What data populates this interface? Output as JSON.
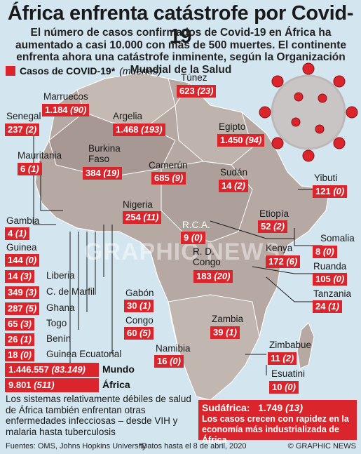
{
  "title": "África enfrenta catástrofe por Covid-19",
  "subtitle": "El número de casos confirmados de Covid-19 en África ha aumentado a casi 10.000 con más de 500 muertes. El continente enfrenta ahora una catástrofe inminente, según la Organización Mundial de la Salud",
  "legend": {
    "label": "Casos de COVID-19*",
    "sub": "(muertes)",
    "color": "#d9252b"
  },
  "countries": [
    {
      "id": "tunez",
      "name": "Túnez",
      "cases": "623",
      "deaths": "(23)"
    },
    {
      "id": "marruecos",
      "name": "Marruecos",
      "cases": "1.184",
      "deaths": "(90)"
    },
    {
      "id": "argelia",
      "name": "Argelia",
      "cases": "1.468",
      "deaths": "(193)"
    },
    {
      "id": "senegal",
      "name": "Senegal",
      "cases": "237",
      "deaths": "(2)"
    },
    {
      "id": "egipto",
      "name": "Egipto",
      "cases": "1.450",
      "deaths": "(94)"
    },
    {
      "id": "mauritania",
      "name": "Mauritania",
      "cases": "6",
      "deaths": "(1)"
    },
    {
      "id": "burkina",
      "name": "Burkina Faso",
      "cases": "384",
      "deaths": "(19)"
    },
    {
      "id": "camerun",
      "name": "Camerún",
      "cases": "685",
      "deaths": "(9)"
    },
    {
      "id": "sudan",
      "name": "Sudán",
      "cases": "14",
      "deaths": "(2)"
    },
    {
      "id": "yibuti",
      "name": "Yibuti",
      "cases": "121",
      "deaths": "(0)"
    },
    {
      "id": "nigeria",
      "name": "Nigeria",
      "cases": "254",
      "deaths": "(11)"
    },
    {
      "id": "gambia",
      "name": "Gambia",
      "cases": "4",
      "deaths": "(1)"
    },
    {
      "id": "etiopia",
      "name": "Etiopía",
      "cases": "52",
      "deaths": "(2)"
    },
    {
      "id": "rca",
      "name": "R.C.A.",
      "cases": "9",
      "deaths": "(0)"
    },
    {
      "id": "somalia",
      "name": "Somalia",
      "cases": "8",
      "deaths": "(0)"
    },
    {
      "id": "guinea",
      "name": "Guinea",
      "cases": "144",
      "deaths": "(0)"
    },
    {
      "id": "rdcongo",
      "name": "R. D. Congo",
      "cases": "183",
      "deaths": "(20)"
    },
    {
      "id": "kenya",
      "name": "Kenya",
      "cases": "172",
      "deaths": "(6)"
    },
    {
      "id": "ruanda",
      "name": "Ruanda",
      "cases": "105",
      "deaths": "(0)"
    },
    {
      "id": "liberia",
      "name": "Liberia",
      "cases": "14",
      "deaths": "(3)"
    },
    {
      "id": "cmarfil",
      "name": "C. de Marfil",
      "cases": "349",
      "deaths": "(3)"
    },
    {
      "id": "tanzania",
      "name": "Tanzania",
      "cases": "24",
      "deaths": "(1)"
    },
    {
      "id": "gabon",
      "name": "Gabón",
      "cases": "30",
      "deaths": "(1)"
    },
    {
      "id": "ghana",
      "name": "Ghana",
      "cases": "287",
      "deaths": "(5)"
    },
    {
      "id": "zambia",
      "name": "Zambia",
      "cases": "39",
      "deaths": "(1)"
    },
    {
      "id": "togo",
      "name": "Togo",
      "cases": "65",
      "deaths": "(3)"
    },
    {
      "id": "congo",
      "name": "Congo",
      "cases": "60",
      "deaths": "(5)"
    },
    {
      "id": "benin",
      "name": "Benín",
      "cases": "26",
      "deaths": "(1)"
    },
    {
      "id": "zimbabue",
      "name": "Zimbabue",
      "cases": "11",
      "deaths": "(2)"
    },
    {
      "id": "guineaeq",
      "name": "Guinea Ecuatorial",
      "cases": "18",
      "deaths": "(0)"
    },
    {
      "id": "namibia",
      "name": "Namibia",
      "cases": "16",
      "deaths": "(0)"
    },
    {
      "id": "esuatini",
      "name": "Esuatini",
      "cases": "10",
      "deaths": "(0)"
    }
  ],
  "totals": {
    "world": {
      "label": "Mundo",
      "cases": "1.446.557",
      "deaths": "(83.149)"
    },
    "africa": {
      "label": "África",
      "cases": "9.801",
      "deaths": "(511)"
    }
  },
  "note": "Los sistemas relativamente débiles de salud de África también enfrentan otras enfermedades infecciosas – desde VIH y malaria hasta tuberculosis",
  "south_africa": {
    "name": "Sudáfrica:",
    "cases": "1.749",
    "deaths": "(13)",
    "text": "Los casos crecen con rapidez en la economía más industrializada de África"
  },
  "footer": {
    "sources": "Fuentes: OMS, Johns Hopkins University",
    "date_note": "*Datos hasta el 8 de abril, 2020",
    "credit": "© GRAPHIC NEWS"
  },
  "watermark": "GRAPHIC NEWS"
}
